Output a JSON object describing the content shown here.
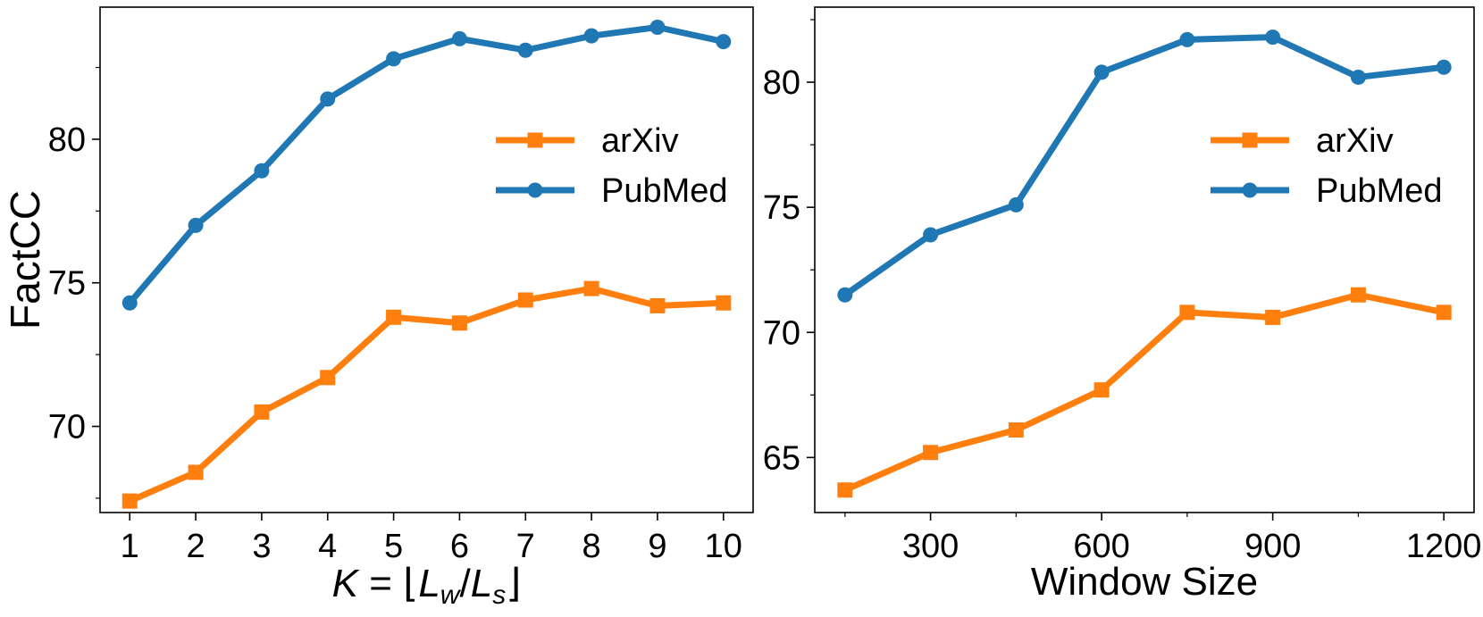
{
  "colors": {
    "arxiv": "#ff7f0e",
    "pubmed": "#1f77b4"
  },
  "chart_data": [
    {
      "type": "line",
      "title": "",
      "xlabel": "K = ⌊L_w / L_s⌋",
      "ylabel": "FactCC",
      "x": [
        1,
        2,
        3,
        4,
        5,
        6,
        7,
        8,
        9,
        10
      ],
      "xticks": [
        1,
        2,
        3,
        4,
        5,
        6,
        7,
        8,
        9,
        10
      ],
      "xlim": [
        0.55,
        10.45
      ],
      "ylim": [
        67.0,
        84.6
      ],
      "yticks": [
        70,
        75,
        80
      ],
      "y_minor_ticks": [
        67.5,
        72.5,
        77.5,
        82.5
      ],
      "grid": false,
      "legend": "center-right",
      "series": [
        {
          "name": "arXiv",
          "marker": "square",
          "values": [
            67.4,
            68.4,
            70.5,
            71.7,
            73.8,
            73.6,
            74.4,
            74.8,
            74.2,
            74.3
          ]
        },
        {
          "name": "PubMed",
          "marker": "circle",
          "values": [
            74.3,
            77.0,
            78.9,
            81.4,
            82.8,
            83.5,
            83.1,
            83.6,
            83.9,
            83.4
          ]
        }
      ]
    },
    {
      "type": "line",
      "title": "",
      "xlabel": "Window Size",
      "ylabel": "",
      "x": [
        150,
        300,
        450,
        600,
        750,
        900,
        1050,
        1200
      ],
      "xticks": [
        300,
        600,
        900,
        1200
      ],
      "x_minor_ticks": [
        150,
        450,
        750,
        1050
      ],
      "xlim": [
        97,
        1253
      ],
      "ylim": [
        62.8,
        83.0
      ],
      "yticks": [
        65,
        70,
        75,
        80
      ],
      "y_minor_ticks": [
        67.5,
        72.5,
        77.5,
        82.5
      ],
      "grid": false,
      "legend": "center-right",
      "series": [
        {
          "name": "arXiv",
          "marker": "square",
          "values": [
            63.7,
            65.2,
            66.1,
            67.7,
            70.8,
            70.6,
            71.5,
            70.8
          ]
        },
        {
          "name": "PubMed",
          "marker": "circle",
          "values": [
            71.5,
            73.9,
            75.1,
            80.4,
            81.7,
            81.8,
            80.2,
            80.6
          ]
        }
      ]
    }
  ]
}
